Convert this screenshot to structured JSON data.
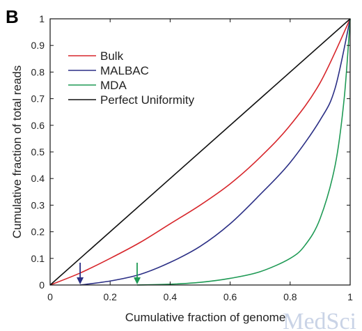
{
  "panel_label": "B",
  "watermark": "MedSci",
  "chart_data": {
    "type": "line",
    "xlabel": "Cumulative fraction of genome",
    "ylabel": "Cumulative fraction of total reads",
    "xlim": [
      0,
      1
    ],
    "ylim": [
      0,
      1
    ],
    "x_ticks": [
      "0",
      "0.2",
      "0.4",
      "0.6",
      "0.8",
      "1"
    ],
    "y_ticks": [
      "0",
      "0.1",
      "0.2",
      "0.3",
      "0.4",
      "0.5",
      "0.6",
      "0.7",
      "0.8",
      "0.9",
      "1"
    ],
    "grid": false,
    "legend_position": "top-left",
    "series": [
      {
        "name": "Bulk",
        "color": "#d7262b",
        "x": [
          0,
          0.1,
          0.2,
          0.3,
          0.4,
          0.5,
          0.6,
          0.7,
          0.8,
          0.9,
          1.0
        ],
        "y": [
          0,
          0.045,
          0.1,
          0.16,
          0.23,
          0.3,
          0.38,
          0.48,
          0.6,
          0.76,
          1.0
        ]
      },
      {
        "name": "MALBAC",
        "color": "#2b2f85",
        "x": [
          0.1,
          0.2,
          0.3,
          0.4,
          0.5,
          0.6,
          0.7,
          0.8,
          0.9,
          0.95,
          1.0
        ],
        "y": [
          0,
          0.015,
          0.04,
          0.085,
          0.145,
          0.23,
          0.34,
          0.46,
          0.62,
          0.74,
          1.0
        ]
      },
      {
        "name": "MDA",
        "color": "#1f9a55",
        "x": [
          0.29,
          0.4,
          0.5,
          0.6,
          0.7,
          0.8,
          0.85,
          0.9,
          0.95,
          0.98,
          1.0
        ],
        "y": [
          0,
          0.003,
          0.01,
          0.025,
          0.05,
          0.1,
          0.15,
          0.25,
          0.45,
          0.7,
          1.0
        ]
      },
      {
        "name": "Perfect Uniformity",
        "color": "#111111",
        "x": [
          0,
          1
        ],
        "y": [
          0,
          1
        ]
      }
    ],
    "annotations": [
      {
        "type": "arrow",
        "x": 0.1,
        "color": "#2b2f85"
      },
      {
        "type": "arrow",
        "x": 0.29,
        "color": "#1f9a55"
      }
    ]
  }
}
